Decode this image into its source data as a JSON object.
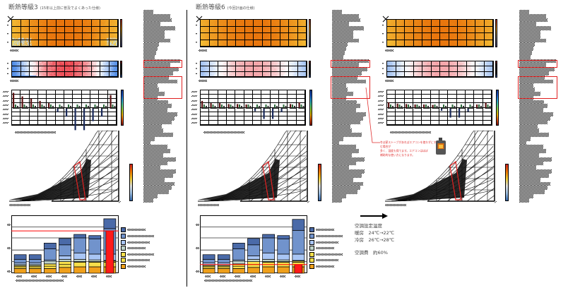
{
  "panels": [
    {
      "title": "断熱等級3",
      "subtitle": "(15年以上前に普及でよくあった仕様)"
    },
    {
      "title": "断熱等級6",
      "subtitle": "(今回計画の仕様)"
    }
  ],
  "note": {
    "lines": [
      "冬は薪ストーブがあればエアコンを使わずにすむ場合が",
      "多く、湿度も保てます。エアコンはほぼ",
      "補助的な使い方になります。"
    ],
    "icon": "wood-stove-icon",
    "color": "#e03030"
  },
  "settings": {
    "heading": "空調設定温度",
    "heating": "暖房　24℃→22℃",
    "cooling": "冷房　26℃→28℃",
    "cost": "空調費　約60%"
  },
  "colors": {
    "series": [
      "#f0a01a",
      "#f7df4a",
      "#f9e04c",
      "#bfd3c9",
      "#a9c6f5",
      "#7193cc",
      "#4a6aa8"
    ],
    "highlight": "#ff1a1a",
    "heat_warm": "#e8780a",
    "heat_cool": "#f9ea50"
  },
  "chart_data": [
    {
      "type": "bar",
      "stacked": true,
      "panel": "断熱等級3",
      "ylim": [
        0,
        100
      ],
      "gridlines": [
        20,
        40,
        61,
        80
      ],
      "reference_line": 73,
      "highlight_bar": {
        "index": 6,
        "value": 73
      },
      "series": [
        {
          "values": [
            8,
            8,
            8,
            10,
            11,
            11,
            11
          ]
        },
        {
          "values": [
            3,
            3,
            4,
            5,
            8,
            8,
            8
          ]
        },
        {
          "values": [
            2,
            2,
            4,
            5,
            1,
            1,
            2
          ]
        },
        {
          "values": [
            2,
            2,
            5,
            4,
            4,
            3,
            1
          ]
        },
        {
          "values": [
            3,
            3,
            2,
            6,
            11,
            10,
            11
          ]
        },
        {
          "values": [
            6,
            6,
            19,
            19,
            26,
            26,
            44
          ]
        },
        {
          "values": [
            8,
            8,
            10,
            11,
            6,
            6,
            17
          ]
        }
      ]
    },
    {
      "type": "bar",
      "stacked": true,
      "panel": "断熱等級6",
      "ylim": [
        0,
        100
      ],
      "gridlines": [
        20,
        40,
        61,
        80
      ],
      "reference_line": 15,
      "highlight_bar": {
        "index": 6,
        "value": 15
      },
      "series": [
        {
          "values": [
            8,
            8,
            8,
            10,
            11,
            11,
            11
          ]
        },
        {
          "values": [
            3,
            3,
            4,
            5,
            8,
            8,
            8
          ]
        },
        {
          "values": [
            2,
            2,
            4,
            5,
            1,
            1,
            2
          ]
        },
        {
          "values": [
            2,
            2,
            5,
            4,
            4,
            3,
            1
          ]
        },
        {
          "values": [
            3,
            3,
            2,
            6,
            11,
            10,
            11
          ]
        },
        {
          "values": [
            6,
            6,
            19,
            19,
            26,
            26,
            41
          ]
        },
        {
          "values": [
            8,
            8,
            10,
            11,
            6,
            6,
            19
          ]
        }
      ]
    },
    {
      "type": "bar",
      "panel": "断熱等級3",
      "monthly_peak": [
        3.3,
        2.5,
        2,
        1.5,
        1,
        -1,
        -2,
        -5,
        -5,
        -3,
        -2,
        2.8
      ]
    },
    {
      "type": "bar",
      "panel": "断熱等級6",
      "monthly_peak": [
        1.5,
        1,
        1,
        0.8,
        0.8,
        0.7,
        -0.8,
        -2.5,
        -2.5,
        -1,
        0.8,
        1.2
      ]
    },
    {
      "type": "bar",
      "panel": "断熱等級6",
      "monthly_peak": [
        1.2,
        0.9,
        0.8,
        0.7,
        0.7,
        0.6,
        -0.7,
        -2.2,
        -2.2,
        -0.9,
        0.7,
        1.1
      ]
    }
  ]
}
